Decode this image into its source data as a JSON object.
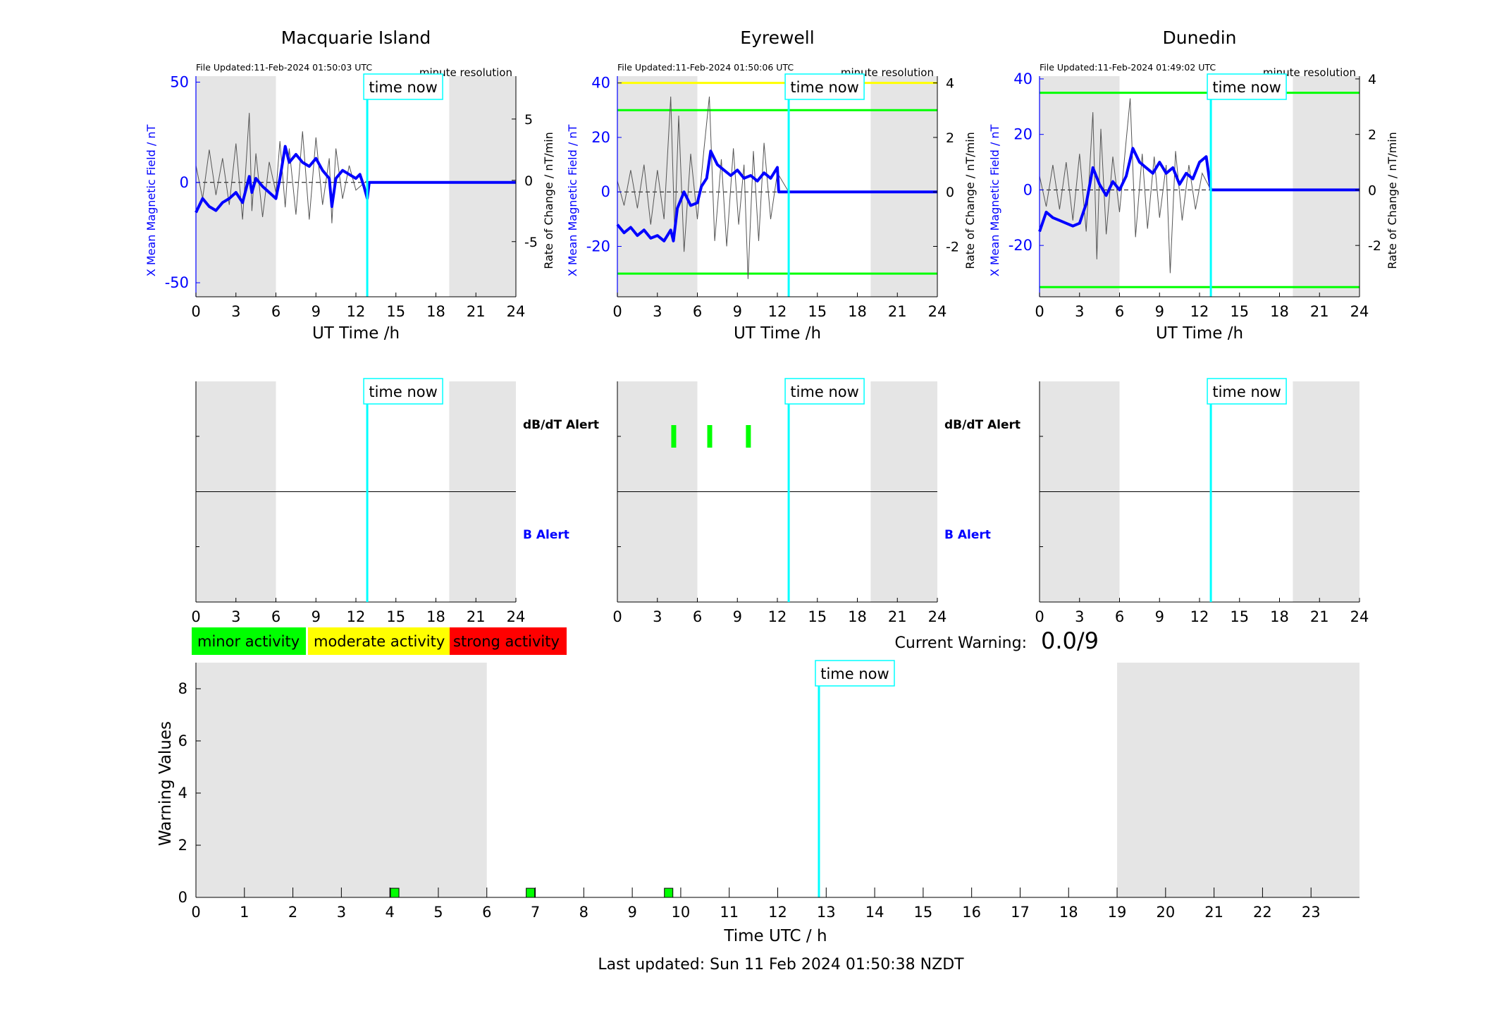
{
  "footer": {
    "last_updated": "Last updated: Sun 11 Feb 2024 01:50:38 NZDT"
  },
  "labels": {
    "time_now": "time now",
    "x_label": "UT Time /h",
    "y_left": "X Mean Magnetic Field / nT",
    "y_right": "Rate of Change / nT/min",
    "resolution": "minute resolution",
    "dbdt_alert": "dB/dT Alert",
    "b_alert": "B Alert",
    "current_warning_label": "Current Warning:",
    "current_warning_value": "0.0/9"
  },
  "legend": [
    {
      "label": "minor activity",
      "color": "#00ff00"
    },
    {
      "label": "moderate activity",
      "color": "#ffff00"
    },
    {
      "label": "strong activity",
      "color": "#ff0000"
    }
  ],
  "colors": {
    "field": "#0000ff",
    "rate": "#555555",
    "time_now": "#00ffff",
    "night": "#e5e5e5",
    "threshold_green": "#00ff00",
    "threshold_yellow": "#ffff00"
  },
  "chart_data": [
    {
      "type": "line",
      "title": "Macquarie Island",
      "file_updated": "File Updated:11-Feb-2024 01:50:03 UTC",
      "xlabel": "UT Time /h",
      "ylabel": "X Mean Magnetic Field / nT",
      "ylabel_right": "Rate of Change / nT/min",
      "xlim": [
        0,
        24
      ],
      "ylim": [
        -57,
        53
      ],
      "ylim_right": [
        -9.5,
        8.5
      ],
      "yticks": [
        -50,
        0,
        50
      ],
      "yticks_right": [
        -5,
        0,
        5
      ],
      "xticks": [
        0,
        3,
        6,
        9,
        12,
        15,
        18,
        21,
        24
      ],
      "night": [
        [
          0,
          6
        ],
        [
          19,
          24
        ]
      ],
      "time_now": 12.85,
      "thresholds": [],
      "field_series": {
        "name": "X Mean Magnetic Field",
        "x": [
          0,
          0.5,
          1,
          1.5,
          2,
          2.5,
          3,
          3.5,
          4,
          4.2,
          4.5,
          5,
          5.5,
          6,
          6.3,
          6.7,
          7,
          7.5,
          8,
          8.5,
          9,
          9.5,
          10,
          10.2,
          10.5,
          11,
          11.5,
          12,
          12.3,
          12.6,
          12.85,
          13,
          24
        ],
        "y": [
          -15,
          -8,
          -12,
          -14,
          -10,
          -8,
          -5,
          -10,
          3,
          -5,
          2,
          -2,
          -5,
          -8,
          2,
          18,
          10,
          14,
          10,
          8,
          12,
          6,
          2,
          -12,
          2,
          6,
          4,
          2,
          4,
          -2,
          -8,
          0,
          0
        ]
      },
      "rate_series": {
        "name": "Rate of Change",
        "x": [
          0,
          0.5,
          1,
          1.5,
          2,
          2.5,
          3,
          3.5,
          4,
          4.2,
          4.5,
          5,
          5.5,
          6,
          6.3,
          6.7,
          7,
          7.5,
          8,
          8.5,
          9,
          9.5,
          10,
          10.2,
          10.5,
          11,
          11.5,
          12,
          12.85
        ],
        "y": [
          1.2,
          -1.5,
          2.5,
          -1.2,
          1.8,
          -2,
          3,
          -3.2,
          5.5,
          -2.5,
          2.2,
          -3,
          1.5,
          -1,
          3.2,
          -2.2,
          2.6,
          -2.8,
          4,
          -3.2,
          3.5,
          -2,
          1.8,
          -3.5,
          2.6,
          -1.5,
          1.2,
          -0.8,
          0
        ]
      },
      "right_axis_labels": [
        "dB/dT Alert",
        "B Alert"
      ],
      "alerts": []
    },
    {
      "type": "line",
      "title": "Eyrewell",
      "file_updated": "File Updated:11-Feb-2024 01:50:06 UTC",
      "xlabel": "UT Time /h",
      "ylabel": "X Mean Magnetic Field / nT",
      "ylabel_right": "Rate of Change / nT/min",
      "xlim": [
        0,
        24
      ],
      "ylim": [
        -38.5,
        42.5
      ],
      "ylim_right": [
        -3.85,
        4.25
      ],
      "yticks": [
        -20,
        0,
        20,
        40
      ],
      "yticks_right": [
        -2,
        0,
        2,
        4
      ],
      "xticks": [
        0,
        3,
        6,
        9,
        12,
        15,
        18,
        21,
        24
      ],
      "night": [
        [
          0,
          6
        ],
        [
          19,
          24
        ]
      ],
      "time_now": 12.85,
      "thresholds": [
        {
          "y": 40,
          "color": "#ffff00"
        },
        {
          "y": 30,
          "color": "#00ff00"
        },
        {
          "y": -30,
          "color": "#00ff00"
        }
      ],
      "field_series": {
        "name": "X Mean Magnetic Field",
        "x": [
          0,
          0.5,
          1,
          1.5,
          2,
          2.5,
          3,
          3.5,
          4,
          4.2,
          4.5,
          5,
          5.5,
          6,
          6.3,
          6.7,
          7,
          7.5,
          8,
          8.5,
          9,
          9.5,
          10,
          10.5,
          11,
          11.5,
          12,
          12.1,
          12.85,
          13,
          24
        ],
        "y": [
          -12,
          -15,
          -13,
          -16,
          -14,
          -17,
          -16,
          -18,
          -14,
          -18,
          -6,
          0,
          -5,
          -4,
          2,
          5,
          15,
          10,
          8,
          6,
          8,
          5,
          6,
          4,
          7,
          5,
          9,
          0,
          0,
          0,
          0
        ]
      },
      "rate_series": {
        "name": "Rate of Change",
        "x": [
          0,
          0.5,
          1,
          1.5,
          2,
          2.5,
          3,
          3.5,
          4,
          4.3,
          4.6,
          5,
          5.5,
          6,
          6.5,
          6.9,
          7.3,
          7.8,
          8.2,
          8.7,
          9.1,
          9.5,
          9.8,
          10.2,
          10.6,
          11,
          11.5,
          12,
          12.85
        ],
        "y": [
          0.4,
          -0.5,
          0.8,
          -0.6,
          1,
          -1.2,
          0.8,
          -1,
          3.5,
          -1.5,
          2.8,
          -2.2,
          1.4,
          -1,
          1.6,
          3.5,
          -1.8,
          1.2,
          -2,
          1.6,
          -1.2,
          1,
          -3.2,
          1.5,
          -1.8,
          1.8,
          -1,
          0.7,
          0
        ]
      },
      "right_axis_labels": [
        "dB/dT Alert",
        "B Alert"
      ],
      "alerts": [
        {
          "t": 4.2,
          "type": "dB/dT",
          "color": "#00ff00"
        },
        {
          "t": 6.9,
          "type": "dB/dT",
          "color": "#00ff00"
        },
        {
          "t": 9.8,
          "type": "dB/dT",
          "color": "#00ff00"
        }
      ]
    },
    {
      "type": "line",
      "title": "Dunedin",
      "file_updated": "File Updated:11-Feb-2024 01:49:02 UTC",
      "xlabel": "UT Time /h",
      "ylabel": "X Mean Magnetic Field / nT",
      "ylabel_right": "Rate of Change / nT/min",
      "xlim": [
        0,
        24
      ],
      "ylim": [
        -38.5,
        41
      ],
      "ylim_right": [
        -3.85,
        4.1
      ],
      "yticks": [
        -20,
        0,
        20,
        40
      ],
      "yticks_right": [
        -2,
        0,
        2,
        4
      ],
      "xticks": [
        0,
        3,
        6,
        9,
        12,
        15,
        18,
        21,
        24
      ],
      "night": [
        [
          0,
          6
        ],
        [
          19,
          24
        ]
      ],
      "time_now": 12.85,
      "thresholds": [
        {
          "y": 35,
          "color": "#00ff00"
        },
        {
          "y": -35,
          "color": "#00ff00"
        }
      ],
      "field_series": {
        "name": "X Mean Magnetic Field",
        "x": [
          0,
          0.5,
          1,
          1.5,
          2,
          2.5,
          3,
          3.5,
          4,
          4.5,
          5,
          5.5,
          6,
          6.5,
          7,
          7.5,
          8,
          8.5,
          9,
          9.5,
          10,
          10.5,
          11,
          11.5,
          12,
          12.5,
          12.85,
          13,
          24
        ],
        "y": [
          -15,
          -8,
          -10,
          -11,
          -12,
          -13,
          -12,
          -5,
          8,
          2,
          -2,
          3,
          0,
          5,
          15,
          10,
          8,
          6,
          10,
          6,
          8,
          2,
          6,
          4,
          10,
          12,
          0,
          0,
          0
        ]
      },
      "rate_series": {
        "name": "Rate of Change",
        "x": [
          0,
          0.5,
          1,
          1.5,
          2,
          2.5,
          3,
          3.5,
          4,
          4.3,
          4.6,
          5,
          5.5,
          6,
          6.5,
          6.8,
          7.2,
          7.7,
          8.1,
          8.6,
          9,
          9.5,
          9.8,
          10.2,
          10.7,
          11.2,
          11.7,
          12.2,
          12.85
        ],
        "y": [
          0.5,
          -0.6,
          0.9,
          -0.7,
          1,
          -1.1,
          1.3,
          -1.5,
          2.8,
          -2.5,
          2.2,
          -1.6,
          1.2,
          -0.8,
          1.8,
          3.3,
          -1.7,
          1.3,
          -1.4,
          1.2,
          -1,
          0.9,
          -3,
          1.4,
          -1.1,
          0.9,
          -0.7,
          0.6,
          0
        ]
      },
      "right_axis_labels": [],
      "alerts": []
    },
    {
      "type": "bar",
      "title": "",
      "xlabel": "Time UTC / h",
      "ylabel": "Warning Values",
      "xlim": [
        0,
        24
      ],
      "ylim": [
        0,
        9
      ],
      "xticks": [
        0,
        1,
        2,
        3,
        4,
        5,
        6,
        7,
        8,
        9,
        10,
        11,
        12,
        13,
        14,
        15,
        16,
        17,
        18,
        19,
        20,
        21,
        22,
        23
      ],
      "yticks": [
        0,
        2,
        4,
        6,
        8
      ],
      "night": [
        [
          0,
          6
        ],
        [
          19,
          24
        ]
      ],
      "time_now": 12.85,
      "bars": [
        {
          "x": 4.1,
          "value": 0.35,
          "color": "#00ff00"
        },
        {
          "x": 6.9,
          "value": 0.35,
          "color": "#00ff00"
        },
        {
          "x": 9.75,
          "value": 0.35,
          "color": "#00ff00"
        }
      ]
    }
  ]
}
